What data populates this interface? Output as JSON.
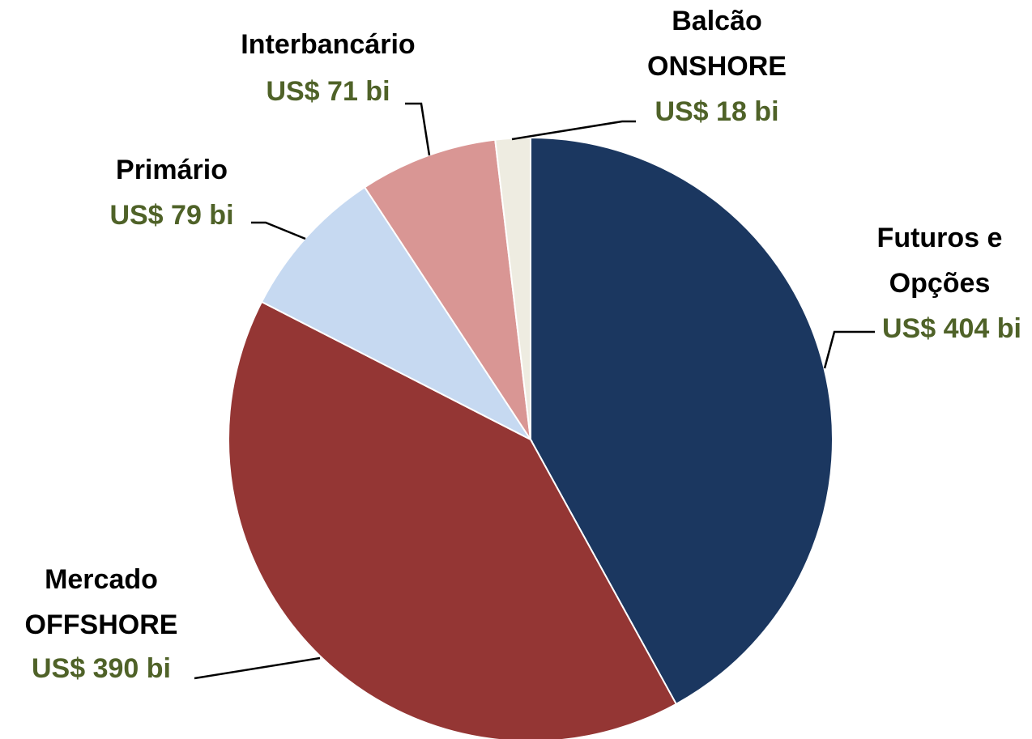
{
  "chart_data": {
    "type": "pie",
    "categories": [
      "Futuros e\nOpções",
      "Mercado\nOFFSHORE",
      "Primário",
      "Interbancário",
      "Balcão\nONSHORE"
    ],
    "values": [
      404,
      390,
      79,
      71,
      18
    ],
    "value_labels": [
      "US$ 404 bi",
      "US$ 390 bi",
      "US$ 79 bi",
      "US$ 71 bi",
      "US$ 18 bi"
    ],
    "colors": [
      "#1b3760",
      "#943634",
      "#c6d9f1",
      "#d99694",
      "#eeece1"
    ]
  }
}
